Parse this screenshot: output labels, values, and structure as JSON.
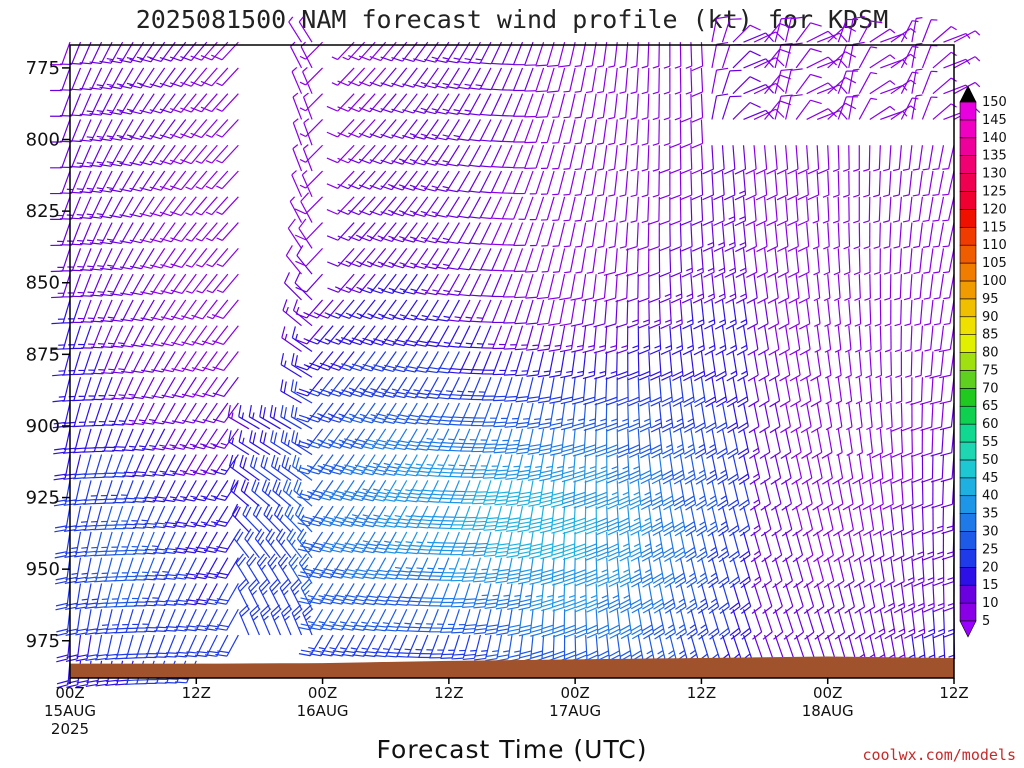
{
  "chart_data": {
    "type": "wind-barb-profile",
    "title": "2025081500 NAM forecast wind profile (kt) for KDSM",
    "xlabel": "Forecast Time (UTC)",
    "ylabel": "",
    "y_scale": "pressure (hPa), inverted",
    "ylim": [
      988,
      767
    ],
    "y_ticks": [
      775,
      800,
      825,
      850,
      875,
      900,
      925,
      950,
      975
    ],
    "x_hours_range": [
      0,
      84
    ],
    "x_ticks": [
      {
        "hour": 0,
        "line1": "00Z",
        "line2": "15AUG",
        "line3": "2025"
      },
      {
        "hour": 12,
        "line1": "12Z",
        "line2": "",
        "line3": ""
      },
      {
        "hour": 24,
        "line1": "00Z",
        "line2": "16AUG",
        "line3": ""
      },
      {
        "hour": 36,
        "line1": "12Z",
        "line2": "",
        "line3": ""
      },
      {
        "hour": 48,
        "line1": "00Z",
        "line2": "17AUG",
        "line3": ""
      },
      {
        "hour": 60,
        "line1": "12Z",
        "line2": "",
        "line3": ""
      },
      {
        "hour": 72,
        "line1": "00Z",
        "line2": "18AUG",
        "line3": ""
      },
      {
        "hour": 84,
        "line1": "12Z",
        "line2": "",
        "line3": ""
      }
    ],
    "barb_time_step_hours": 1,
    "barb_levels_hPa": [
      766,
      775,
      784,
      793,
      802,
      811,
      820,
      829,
      838,
      847,
      856,
      865,
      874,
      883,
      892,
      901,
      910,
      919,
      928,
      937,
      946,
      955,
      964,
      973,
      982
    ],
    "surface_pressure_hPa": [
      {
        "hour": 0,
        "p": 983
      },
      {
        "hour": 12,
        "p": 983
      },
      {
        "hour": 24,
        "p": 982.8
      },
      {
        "hour": 36,
        "p": 982
      },
      {
        "hour": 48,
        "p": 981.5
      },
      {
        "hour": 60,
        "p": 981
      },
      {
        "hour": 72,
        "p": 980.5
      },
      {
        "hour": 84,
        "p": 981
      }
    ],
    "colorbar": {
      "unit": "kt",
      "ticks": [
        5,
        10,
        15,
        20,
        25,
        30,
        35,
        40,
        45,
        50,
        55,
        60,
        65,
        70,
        75,
        80,
        85,
        90,
        95,
        100,
        105,
        110,
        115,
        120,
        125,
        130,
        135,
        140,
        145,
        150
      ],
      "colors": [
        "#8a00e6",
        "#6a00e0",
        "#2d10e8",
        "#1f3ae8",
        "#1e5ae8",
        "#1e7ae8",
        "#1e96e8",
        "#1eb0e0",
        "#1ec8d2",
        "#1ed6b2",
        "#10d890",
        "#10d050",
        "#20c820",
        "#60d020",
        "#a0e010",
        "#e0f000",
        "#f0e000",
        "#f0c000",
        "#f09c00",
        "#f07c00",
        "#f05c00",
        "#f03c00",
        "#f01000",
        "#f00030",
        "#f00050",
        "#f00070",
        "#f0009a",
        "#f000c0",
        "#e800e0"
      ],
      "max_color": "#000000",
      "min_color": "#9a00ff"
    },
    "ground_color": "#a0522d",
    "credit": "coolwx.com/models"
  }
}
